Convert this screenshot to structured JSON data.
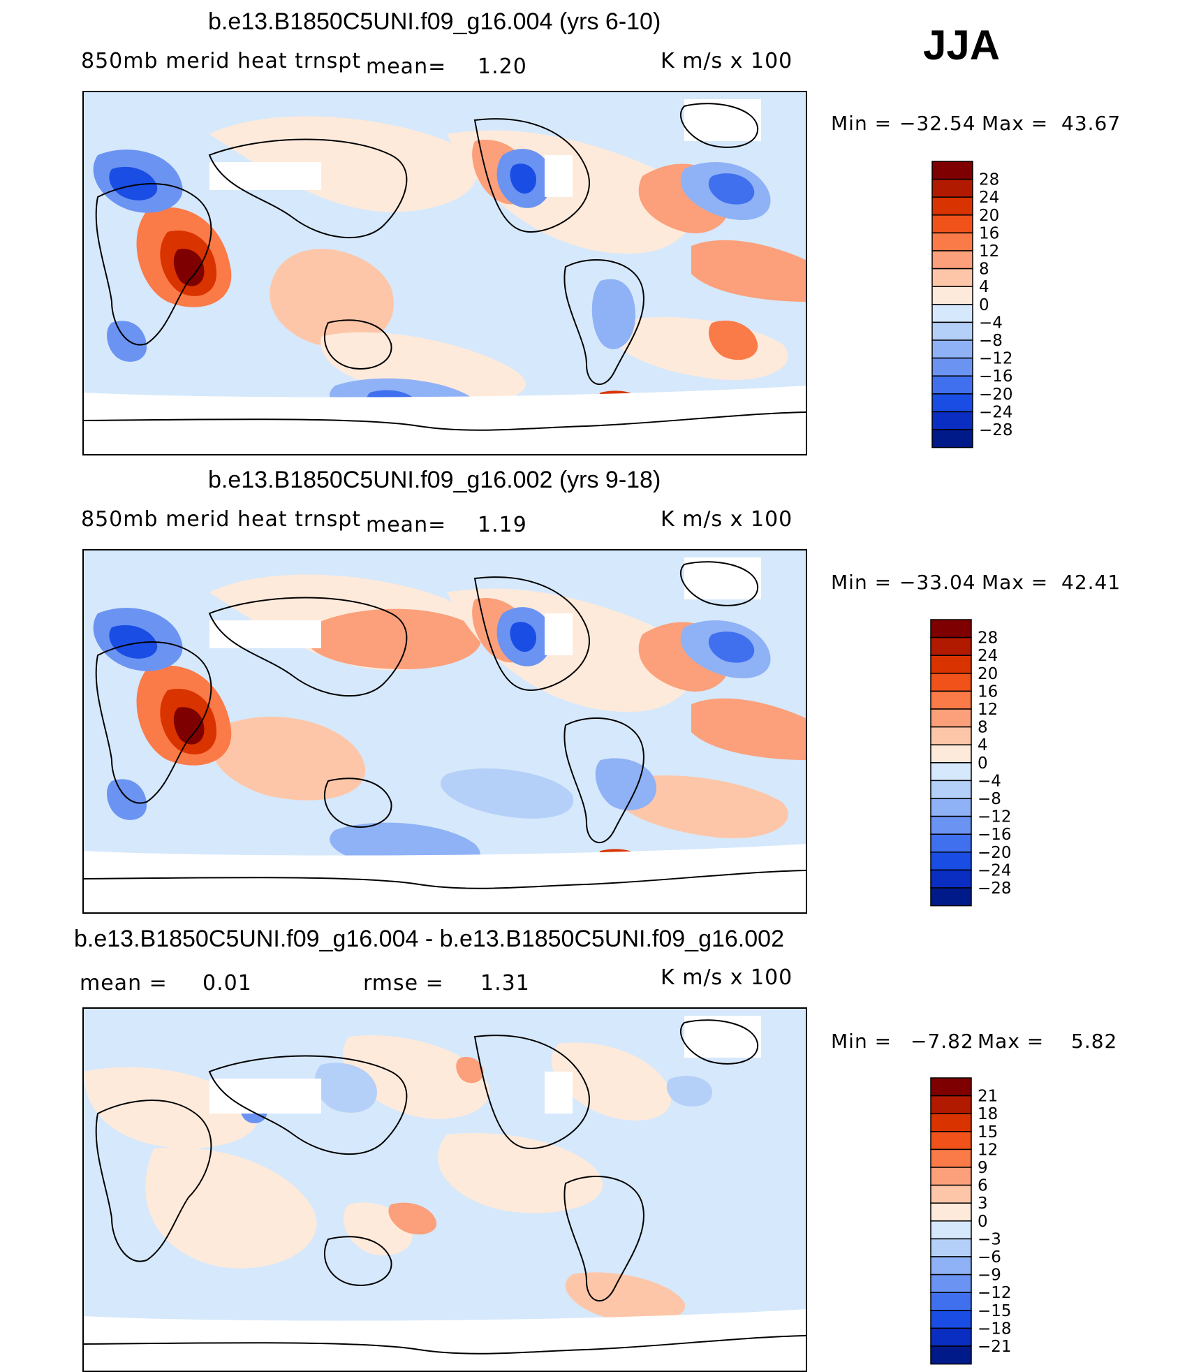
{
  "season": "JJA",
  "panels": [
    {
      "title": "b.e13.B1850C5UNI.f09_g16.004 (yrs 6-10)",
      "left_label": "850mb merid heat trnspt",
      "mean_label": "mean=",
      "mean_value": "1.20",
      "units": "K m/s x 100",
      "min_label": "Min =",
      "min_value": "−32.54",
      "max_label": "Max =",
      "max_value": "43.67",
      "colorbar": {
        "levels": [
          "28",
          "24",
          "20",
          "16",
          "12",
          "8",
          "4",
          "0",
          "−4",
          "−8",
          "−12",
          "−16",
          "−20",
          "−24",
          "−28"
        ],
        "colors": [
          "#7f0000",
          "#b21a00",
          "#d93300",
          "#f0521a",
          "#fa7a48",
          "#fba07a",
          "#fdc6a8",
          "#feeadb",
          "#d6e8fb",
          "#b5d0f8",
          "#8fb2f6",
          "#6b93f2",
          "#4070ee",
          "#1a4de4",
          "#0a2dc2",
          "#001a8a"
        ]
      }
    },
    {
      "title": "b.e13.B1850C5UNI.f09_g16.002 (yrs 9-18)",
      "left_label": "850mb merid heat trnspt",
      "mean_label": "mean=",
      "mean_value": "1.19",
      "units": "K m/s x 100",
      "min_label": "Min =",
      "min_value": "−33.04",
      "max_label": "Max =",
      "max_value": "42.41",
      "colorbar": {
        "levels": [
          "28",
          "24",
          "20",
          "16",
          "12",
          "8",
          "4",
          "0",
          "−4",
          "−8",
          "−12",
          "−16",
          "−20",
          "−24",
          "−28"
        ],
        "colors": [
          "#7f0000",
          "#b21a00",
          "#d93300",
          "#f0521a",
          "#fa7a48",
          "#fba07a",
          "#fdc6a8",
          "#feeadb",
          "#d6e8fb",
          "#b5d0f8",
          "#8fb2f6",
          "#6b93f2",
          "#4070ee",
          "#1a4de4",
          "#0a2dc2",
          "#001a8a"
        ]
      }
    },
    {
      "title": "b.e13.B1850C5UNI.f09_g16.004 - b.e13.B1850C5UNI.f09_g16.002",
      "mean_label": "mean =",
      "mean_value": "0.01",
      "rmse_label": "rmse =",
      "rmse_value": "1.31",
      "units": "K m/s x 100",
      "min_label": "Min =",
      "min_value": "−7.82",
      "max_label": "Max =",
      "max_value": "5.82",
      "colorbar": {
        "levels": [
          "21",
          "18",
          "15",
          "12",
          "9",
          "6",
          "3",
          "0",
          "−3",
          "−6",
          "−9",
          "−12",
          "−15",
          "−18",
          "−21"
        ],
        "colors": [
          "#7f0000",
          "#b21a00",
          "#d93300",
          "#f0521a",
          "#fa7a48",
          "#fba07a",
          "#fdc6a8",
          "#feeadb",
          "#d6e8fb",
          "#b5d0f8",
          "#8fb2f6",
          "#6b93f2",
          "#4070ee",
          "#1a4de4",
          "#0a2dc2",
          "#001a8a"
        ]
      }
    }
  ]
}
